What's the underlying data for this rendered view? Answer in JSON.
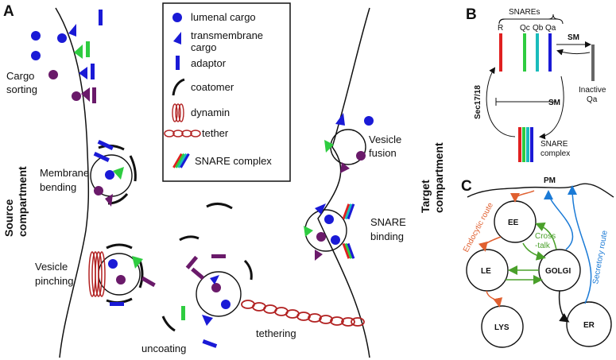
{
  "panels": {
    "a": "A",
    "b": "B",
    "c": "C"
  },
  "panel_a": {
    "source_compartment": [
      "Source",
      "compartment"
    ],
    "target_compartment": [
      "Target",
      "compartment"
    ],
    "steps": {
      "cargo_sorting": [
        "Cargo",
        "sorting"
      ],
      "membrane_bending": [
        "Membrane",
        "bending"
      ],
      "vesicle_pinching": [
        "Vesicle",
        "pinching"
      ],
      "uncoating": "uncoating",
      "tethering": "tethering",
      "snare_binding": [
        "SNARE",
        "binding"
      ],
      "vesicle_fusion": [
        "Vesicle",
        "fusion"
      ]
    },
    "legend": {
      "lumenal_cargo": "lumenal cargo",
      "transmembrane_cargo": [
        "transmembrane",
        "cargo"
      ],
      "adaptor": "adaptor",
      "coatomer": "coatomer",
      "dynamin": "dynamin",
      "tether": "tether",
      "snare_complex": "SNARE complex"
    },
    "colors": {
      "lumenal": "#1a1ad6",
      "transmembrane": "#1a1ad6",
      "adaptor": "#1a1ad6",
      "green": "#2ecc40",
      "purple": "#6a1a6a",
      "dynamin": "#b22222"
    }
  },
  "panel_b": {
    "snares_header": "SNAREs",
    "snare_labels": [
      "R",
      "Qc",
      "Qb",
      "Qa"
    ],
    "snare_colors": [
      "#e02020",
      "#2ecc40",
      "#1abcbc",
      "#1a1ad6"
    ],
    "sm_label": "SM",
    "inactive_qa": [
      "Inactive",
      "Qa"
    ],
    "sec_label": "Sec17/18",
    "sm_inhibit_label": "SM",
    "snare_complex": [
      "SNARE",
      "complex"
    ]
  },
  "panel_c": {
    "pm": "PM",
    "nodes": {
      "ee": "EE",
      "le": "LE",
      "golgi": "GOLGI",
      "lys": "LYS",
      "er": "ER"
    },
    "endocytic_route": "Endocytic route",
    "secretory_route": "Secretory route",
    "cross_talk": [
      "Cross",
      "-talk"
    ],
    "colors": {
      "endocytic": "#e06030",
      "secretory": "#1a7ad6",
      "crosstalk": "#4aa02a",
      "neutral": "#111111"
    }
  }
}
